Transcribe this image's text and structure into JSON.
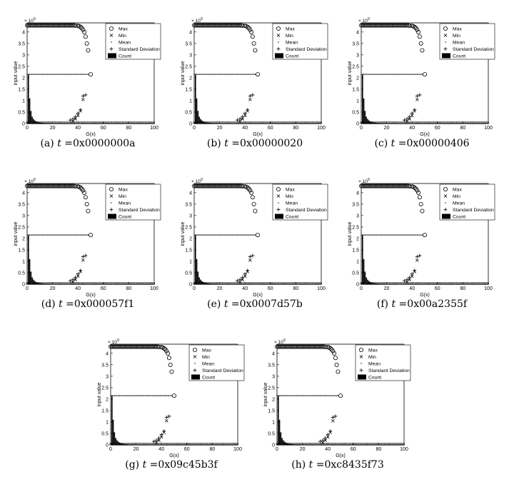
{
  "figure": {
    "panel_caption_var": "t",
    "panels": [
      {
        "label": "(a)",
        "t_value": "0x0000000a"
      },
      {
        "label": "(b)",
        "t_value": "0x00000020"
      },
      {
        "label": "(c)",
        "t_value": "0x00000406"
      },
      {
        "label": "(d)",
        "t_value": "0x000057f1"
      },
      {
        "label": "(e)",
        "t_value": "0x0007d57b"
      },
      {
        "label": "(f)",
        "t_value": "0x00a2355f"
      },
      {
        "label": "(g)",
        "t_value": "0x09c45b3f"
      },
      {
        "label": "(h)",
        "t_value": "0xc8435f73"
      }
    ]
  },
  "chart_data": {
    "type": "scatter",
    "xlabel": "G(x)",
    "ylabel": "input value",
    "y_multiplier": "× 10",
    "y_exponent": "9",
    "xlim": [
      0,
      100
    ],
    "ylim": [
      0,
      4.4
    ],
    "xticks": [
      0,
      20,
      40,
      60,
      80,
      100
    ],
    "yticks": [
      0,
      0.5,
      1,
      1.5,
      2,
      2.5,
      3,
      3.5,
      4
    ],
    "ytick_labels": [
      "0",
      "0.5",
      "1",
      "1.5",
      "2",
      "2.5",
      "3",
      "3.5",
      "4"
    ],
    "legend": {
      "placement": "top-right",
      "entries": [
        "Max",
        "Min",
        "Mean",
        "Standard Deviation",
        "Count"
      ]
    },
    "series": [
      {
        "name": "Max",
        "x": [
          0,
          2,
          4,
          6,
          8,
          10,
          12,
          14,
          16,
          18,
          20,
          22,
          24,
          26,
          28,
          30,
          32,
          34,
          36,
          38,
          40,
          41,
          42,
          43,
          44,
          45,
          46,
          47,
          48
        ],
        "values": [
          4.29,
          4.29,
          4.29,
          4.29,
          4.29,
          4.29,
          4.29,
          4.29,
          4.29,
          4.29,
          4.29,
          4.29,
          4.29,
          4.29,
          4.29,
          4.29,
          4.29,
          4.29,
          4.29,
          4.28,
          4.27,
          4.25,
          4.22,
          4.17,
          4.1,
          4.0,
          3.8,
          3.5,
          3.2
        ]
      },
      {
        "name": "Min",
        "x": [
          0,
          2,
          4,
          6,
          8,
          10,
          12,
          14,
          16,
          18,
          20,
          22,
          24,
          26,
          28,
          30,
          32,
          34,
          36,
          38,
          40,
          42,
          44
        ],
        "values": [
          0,
          0,
          0,
          0,
          0,
          0,
          0,
          0,
          0,
          0,
          0,
          0,
          0,
          0,
          0,
          0.01,
          0.02,
          0.05,
          0.1,
          0.2,
          0.35,
          0.55,
          1.05
        ]
      },
      {
        "name": "Mean",
        "x": [
          0,
          4,
          8,
          12,
          16,
          20,
          24,
          28,
          32,
          36,
          40,
          44,
          48
        ],
        "values": [
          2.15,
          2.15,
          2.15,
          2.15,
          2.15,
          2.15,
          2.15,
          2.15,
          2.15,
          2.15,
          2.15,
          2.15,
          2.15
        ]
      },
      {
        "name": "Standard Deviation",
        "x": [
          34,
          36,
          38,
          40,
          42,
          44,
          46
        ],
        "values": [
          0.15,
          0.2,
          0.3,
          0.45,
          0.6,
          1.2,
          1.25
        ]
      },
      {
        "name": "Count",
        "x": [
          1,
          2,
          3,
          4,
          5,
          6,
          7,
          8,
          9,
          10,
          11,
          12,
          13,
          14,
          15,
          16,
          17,
          18
        ],
        "values": [
          2.15,
          1.1,
          0.55,
          0.3,
          0.2,
          0.14,
          0.1,
          0.08,
          0.06,
          0.05,
          0.04,
          0.03,
          0.03,
          0.02,
          0.02,
          0.02,
          0.01,
          0.01
        ]
      }
    ]
  }
}
